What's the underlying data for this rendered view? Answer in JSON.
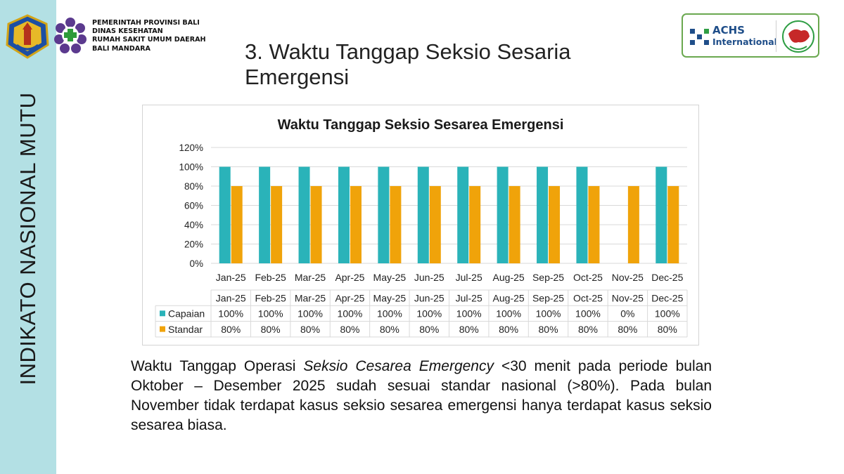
{
  "sidebar": {
    "vertical_text": "INDIKATO NASIONAL MUTU"
  },
  "header": {
    "org_lines": [
      "PEMERINTAH PROVINSI BALI",
      "DINAS KESEHATAN",
      "RUMAH SAKIT UMUM DAERAH",
      "BALI MANDARA"
    ],
    "title_line1": "3. Waktu Tanggap Seksio Sesaria",
    "title_line2": "Emergensi"
  },
  "achs_badge": {
    "name": "ACHS",
    "sub": "International"
  },
  "colors": {
    "sidebar": "#b3e0e4",
    "capaian": "#2ab3b9",
    "standar": "#f0a30a",
    "grid": "#d9d9d9"
  },
  "chart_data": {
    "type": "bar",
    "title": "Waktu Tanggap Seksio Sesarea Emergensi",
    "categories": [
      "Jan-25",
      "Feb-25",
      "Mar-25",
      "Apr-25",
      "May-25",
      "Jun-25",
      "Jul-25",
      "Aug-25",
      "Sep-25",
      "Oct-25",
      "Nov-25",
      "Dec-25"
    ],
    "series": [
      {
        "name": "Capaian",
        "values": [
          100,
          100,
          100,
          100,
          100,
          100,
          100,
          100,
          100,
          100,
          0,
          100
        ],
        "labels": [
          "100%",
          "100%",
          "100%",
          "100%",
          "100%",
          "100%",
          "100%",
          "100%",
          "100%",
          "100%",
          "0%",
          "100%"
        ]
      },
      {
        "name": "Standar",
        "values": [
          80,
          80,
          80,
          80,
          80,
          80,
          80,
          80,
          80,
          80,
          80,
          80
        ],
        "labels": [
          "80%",
          "80%",
          "80%",
          "80%",
          "80%",
          "80%",
          "80%",
          "80%",
          "80%",
          "80%",
          "80%",
          "80%"
        ]
      }
    ],
    "yticks": [
      "0%",
      "20%",
      "40%",
      "60%",
      "80%",
      "100%",
      "120%"
    ],
    "ylim": [
      0,
      120
    ],
    "grid": true,
    "data_table": true,
    "xlabel": "",
    "ylabel": ""
  },
  "caption": {
    "part1": "Waktu Tanggap Operasi ",
    "emphasis": "Seksio Cesarea Emergency",
    "part2": " <30 menit pada periode bulan Oktober – Desember 2025 sudah sesuai standar nasional (>80%). Pada bulan November tidak terdapat kasus seksio sesarea emergensi hanya terdapat kasus seksio sesarea biasa."
  }
}
